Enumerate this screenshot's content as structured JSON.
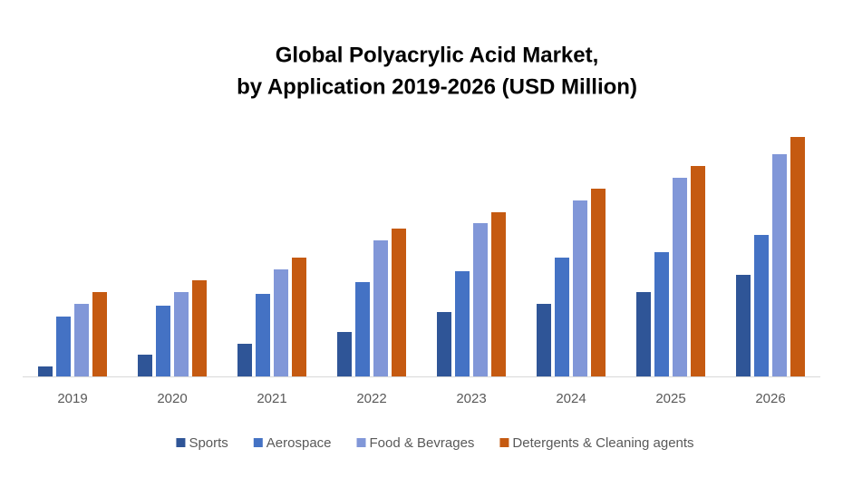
{
  "chart_data": {
    "type": "bar",
    "title": [
      "Global Polyacrylic Acid Market,",
      "by Application 2019-2026 (USD Million)"
    ],
    "categories": [
      "2019",
      "2020",
      "2021",
      "2022",
      "2023",
      "2024",
      "2025",
      "2026"
    ],
    "series": [
      {
        "name": "Sports",
        "color": "#2f5597",
        "values": [
          11,
          24,
          36,
          49,
          71,
          80,
          93,
          112
        ]
      },
      {
        "name": "Aerospace",
        "color": "#4472c4",
        "values": [
          66,
          78,
          91,
          104,
          116,
          131,
          137,
          156
        ]
      },
      {
        "name": "Food & Bevrages",
        "color": "#8197d8",
        "values": [
          80,
          93,
          118,
          150,
          169,
          194,
          219,
          245
        ]
      },
      {
        "name": "Detergents & Cleaning agents",
        "color": "#c55a11",
        "values": [
          93,
          106,
          131,
          163,
          181,
          207,
          232,
          264
        ]
      }
    ],
    "ylim": [
      0,
      280
    ],
    "legend": "bottom"
  }
}
